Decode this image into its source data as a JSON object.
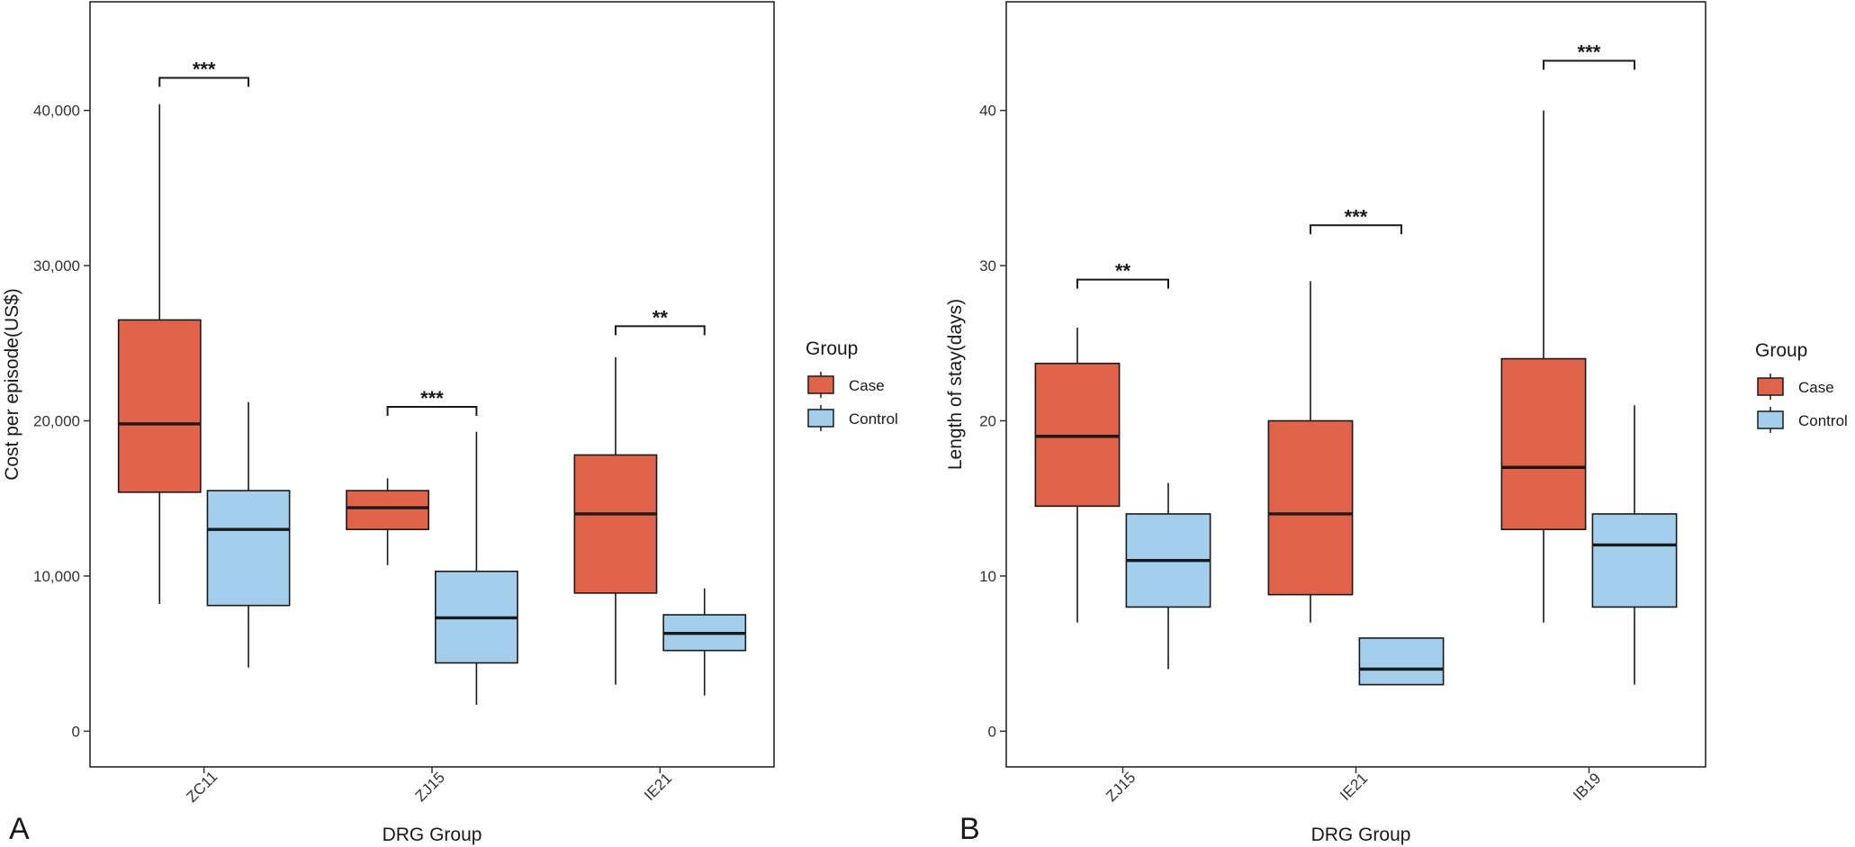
{
  "chart_data": [
    {
      "panel_label": "A",
      "type": "boxplot",
      "xlabel": "DRG Group",
      "ylabel": "Cost per episode(US$)",
      "ylim": [
        -2300,
        47000
      ],
      "yticks": [
        0,
        10000,
        20000,
        30000,
        40000
      ],
      "ytick_labels": [
        "0",
        "10,000",
        "20,000",
        "30,000",
        "40,000"
      ],
      "categories": [
        "ZC11",
        "ZJ15",
        "IE21"
      ],
      "series": [
        {
          "name": "Case",
          "color": "#E0634A",
          "boxes": [
            {
              "whisker_low": 8200,
              "q1": 15400,
              "median": 19800,
              "q3": 26500,
              "whisker_high": 40400
            },
            {
              "whisker_low": 10700,
              "q1": 13000,
              "median": 14400,
              "q3": 15500,
              "whisker_high": 16300
            },
            {
              "whisker_low": 3000,
              "q1": 8900,
              "median": 14000,
              "q3": 17800,
              "whisker_high": 24100
            }
          ]
        },
        {
          "name": "Control",
          "color": "#A3CFEC",
          "boxes": [
            {
              "whisker_low": 4100,
              "q1": 8100,
              "median": 13000,
              "q3": 15500,
              "whisker_high": 21200
            },
            {
              "whisker_low": 1700,
              "q1": 4400,
              "median": 7300,
              "q3": 10300,
              "whisker_high": 19300
            },
            {
              "whisker_low": 2300,
              "q1": 5200,
              "median": 6300,
              "q3": 7500,
              "whisker_high": 9200
            }
          ]
        }
      ],
      "significance": [
        {
          "category": "ZC11",
          "label": "***",
          "y": 42100
        },
        {
          "category": "ZJ15",
          "label": "***",
          "y": 20900
        },
        {
          "category": "IE21",
          "label": "**",
          "y": 26100
        }
      ],
      "legend": {
        "title": "Group",
        "position": "right",
        "entries": [
          "Case",
          "Control"
        ]
      }
    },
    {
      "panel_label": "B",
      "type": "boxplot",
      "xlabel": "DRG Group",
      "ylabel": "Length of stay(days)",
      "ylim": [
        -2.3,
        47
      ],
      "yticks": [
        0,
        10,
        20,
        30,
        40
      ],
      "ytick_labels": [
        "0",
        "10",
        "20",
        "30",
        "40"
      ],
      "categories": [
        "ZJ15",
        "IE21",
        "IB19"
      ],
      "series": [
        {
          "name": "Case",
          "color": "#E0634A",
          "boxes": [
            {
              "whisker_low": 7,
              "q1": 14.5,
              "median": 19,
              "q3": 23.7,
              "whisker_high": 26
            },
            {
              "whisker_low": 7,
              "q1": 8.8,
              "median": 14,
              "q3": 20,
              "whisker_high": 29
            },
            {
              "whisker_low": 7,
              "q1": 13,
              "median": 17,
              "q3": 24,
              "whisker_high": 40
            }
          ]
        },
        {
          "name": "Control",
          "color": "#A3CFEC",
          "boxes": [
            {
              "whisker_low": 4,
              "q1": 8,
              "median": 11,
              "q3": 14,
              "whisker_high": 16
            },
            {
              "whisker_low": 3,
              "q1": 3,
              "median": 4,
              "q3": 6,
              "whisker_high": 6
            },
            {
              "whisker_low": 3,
              "q1": 8,
              "median": 12,
              "q3": 14,
              "whisker_high": 21
            }
          ]
        }
      ],
      "significance": [
        {
          "category": "ZJ15",
          "label": "**",
          "y": 29.1
        },
        {
          "category": "IE21",
          "label": "***",
          "y": 32.6
        },
        {
          "category": "IB19",
          "label": "***",
          "y": 43.2
        }
      ],
      "legend": {
        "title": "Group",
        "position": "right",
        "entries": [
          "Case",
          "Control"
        ]
      }
    }
  ]
}
